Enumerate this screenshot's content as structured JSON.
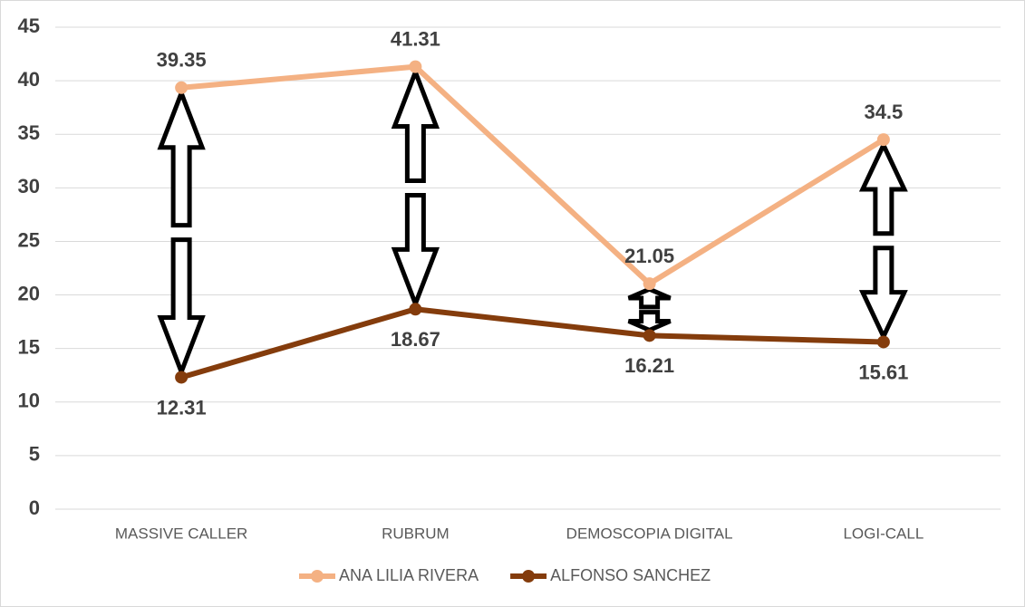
{
  "chart_data": {
    "type": "line",
    "categories": [
      "MASSIVE CALLER",
      "RUBRUM",
      "DEMOSCOPIA DIGITAL",
      "LOGI-CALL"
    ],
    "series": [
      {
        "name": "ANA LILIA RIVERA",
        "color": "#F4B183",
        "values": [
          39.35,
          41.31,
          21.05,
          34.5
        ]
      },
      {
        "name": "ALFONSO SANCHEZ",
        "color": "#843C0C",
        "values": [
          12.31,
          18.67,
          16.21,
          15.61
        ]
      }
    ],
    "ylim": [
      0,
      45
    ],
    "yticks": [
      0,
      5,
      10,
      15,
      20,
      25,
      30,
      35,
      40,
      45
    ],
    "grid": true,
    "legend": "bottom"
  }
}
